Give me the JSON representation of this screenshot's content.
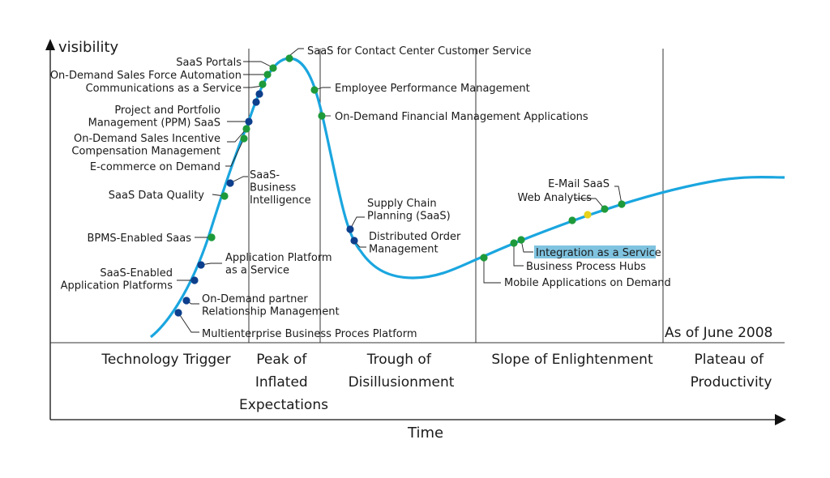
{
  "diagram": {
    "y_axis_label": "visibility",
    "x_axis_label": "Time",
    "as_of": "As of June 2008",
    "phases": [
      [
        "Technology Trigger"
      ],
      [
        "Peak of",
        "Inflated",
        "Expectations"
      ],
      [
        "Trough of",
        "Disillusionment"
      ],
      [
        "Slope of Enlightenment"
      ],
      [
        "Plateau of",
        "Productivity"
      ]
    ],
    "labels": [
      [
        "SaaS for Contact Center Customer Service"
      ],
      [
        "SaaS Portals"
      ],
      [
        "On-Demand Sales Force Automation"
      ],
      [
        "Communications as a Service"
      ],
      [
        "Employee Performance Management"
      ],
      [
        "On-Demand Financial Management Applications"
      ],
      [
        "Project and Portfolio",
        "Management (PPM) SaaS"
      ],
      [
        "On-Demand Sales Incentive",
        "Compensation Management"
      ],
      [
        "E-commerce on Demand"
      ],
      [
        "SaaS-",
        "Business",
        "Intelligence"
      ],
      [
        "SaaS Data Quality"
      ],
      [
        "Supply Chain",
        "Planning (SaaS)"
      ],
      [
        "BPMS-Enabled Saas"
      ],
      [
        "Distributed Order",
        "Management"
      ],
      [
        "Application Platform",
        "as a Service"
      ],
      [
        "SaaS-Enabled",
        "Application Platforms"
      ],
      [
        "On-Demand partner",
        "Relationship Management"
      ],
      [
        "Multienterprise Business Proces Platform"
      ],
      [
        "E-Mail SaaS"
      ],
      [
        "Web Analytics"
      ],
      [
        "Integration as a Service"
      ],
      [
        "Business Process Hubs"
      ],
      [
        "Mobile Applications on Demand"
      ]
    ],
    "colors": {
      "curve": "#1aa6df",
      "green_dot": "#1e9a3a",
      "blue_dot": "#0d3f8c",
      "yellow_dot": "#e8d21a",
      "highlight": "#7fc3e0",
      "axis": "#111111"
    },
    "dots": [
      {
        "color": "green"
      },
      {
        "color": "green"
      },
      {
        "color": "green"
      },
      {
        "color": "green"
      },
      {
        "color": "blue"
      },
      {
        "color": "blue"
      },
      {
        "color": "blue"
      },
      {
        "color": "green"
      },
      {
        "color": "green"
      },
      {
        "color": "green"
      },
      {
        "color": "blue"
      },
      {
        "color": "green"
      },
      {
        "color": "green"
      },
      {
        "color": "blue"
      },
      {
        "color": "blue"
      },
      {
        "color": "blue"
      },
      {
        "color": "blue"
      },
      {
        "color": "blue"
      },
      {
        "color": "blue"
      },
      {
        "color": "green"
      },
      {
        "color": "green"
      },
      {
        "color": "green"
      },
      {
        "color": "green"
      },
      {
        "color": "green"
      },
      {
        "color": "green"
      },
      {
        "color": "yellow"
      },
      {
        "color": "green"
      },
      {
        "color": "green"
      }
    ]
  }
}
